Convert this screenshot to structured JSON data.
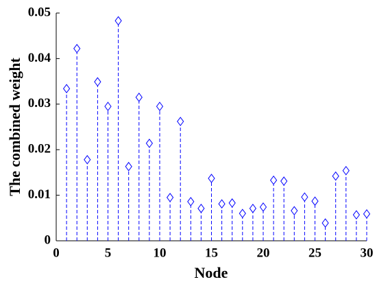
{
  "chart_data": {
    "type": "stem",
    "xlabel": "Node",
    "ylabel": "The combined weight",
    "x": [
      1,
      2,
      3,
      4,
      5,
      6,
      7,
      8,
      9,
      10,
      11,
      12,
      13,
      14,
      15,
      16,
      17,
      18,
      19,
      20,
      21,
      22,
      23,
      24,
      25,
      26,
      27,
      28,
      29,
      30
    ],
    "series": [
      {
        "color": "#0000ff",
        "values": [
          0.0334,
          0.0422,
          0.0178,
          0.0349,
          0.0295,
          0.0483,
          0.0163,
          0.0315,
          0.0214,
          0.0295,
          0.0095,
          0.0262,
          0.0086,
          0.0071,
          0.0137,
          0.0081,
          0.0083,
          0.006,
          0.0071,
          0.0074,
          0.0133,
          0.0131,
          0.0066,
          0.0096,
          0.0087,
          0.0039,
          0.0142,
          0.0154,
          0.0057,
          0.0059
        ]
      }
    ],
    "xlim": [
      0,
      30
    ],
    "xticks": [
      0,
      5,
      10,
      15,
      20,
      25,
      30
    ],
    "ylim": [
      0,
      0.05
    ],
    "yticks": [
      0,
      0.01,
      0.02,
      0.03,
      0.04,
      0.05
    ],
    "grid": false
  }
}
